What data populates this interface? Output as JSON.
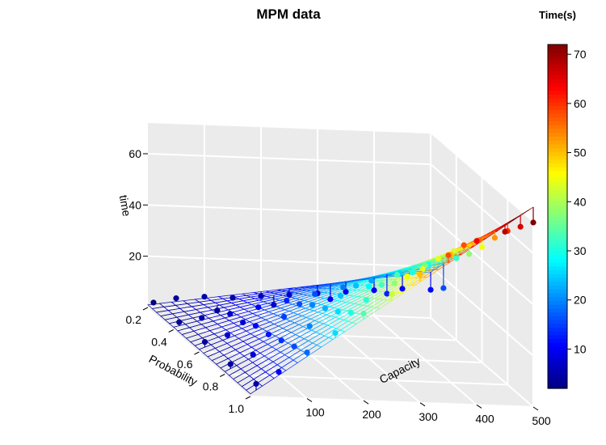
{
  "chart_data": {
    "type": "scatter",
    "title": "MPM  data",
    "xlabel": "Capacity",
    "ylabel": "Probability",
    "zlabel": "time",
    "xlim": [
      0,
      500
    ],
    "ylim": [
      0.2,
      1.0
    ],
    "zlim": [
      0,
      72
    ],
    "x_ticks": [
      100,
      200,
      300,
      400,
      500
    ],
    "y_ticks": [
      0.2,
      0.4,
      0.6,
      0.8,
      1.0
    ],
    "z_ticks": [
      20,
      40,
      60
    ],
    "x_tick_labels": [
      "100",
      "200",
      "300",
      "400",
      "500"
    ],
    "y_tick_labels": [
      "0.2",
      "0.4",
      "0.6",
      "0.8",
      "1.0"
    ],
    "z_tick_labels": [
      "20",
      "40",
      "60"
    ],
    "fitted_plane": {
      "intercept": 1.0,
      "coef_capacity": 0.004,
      "coef_capacity_x_probability": 0.15
    },
    "plane_color_range": [
      0,
      70
    ],
    "panel_color": "#ebebeb",
    "grid_color": "#ffffff",
    "grid": true,
    "points_color_by": "time",
    "series": [
      {
        "points": [
          [
            10,
            0.2,
            2
          ],
          [
            50,
            0.2,
            4
          ],
          [
            100,
            0.2,
            5
          ],
          [
            150,
            0.2,
            5
          ],
          [
            200,
            0.2,
            6
          ],
          [
            250,
            0.2,
            7
          ],
          [
            300,
            0.2,
            8
          ],
          [
            350,
            0.2,
            9
          ],
          [
            400,
            0.2,
            10
          ],
          [
            450,
            0.2,
            11
          ],
          [
            500,
            0.2,
            11
          ],
          [
            10,
            0.4,
            3
          ],
          [
            50,
            0.4,
            5
          ],
          [
            100,
            0.4,
            7
          ],
          [
            150,
            0.4,
            10
          ],
          [
            200,
            0.4,
            13
          ],
          [
            250,
            0.4,
            16
          ],
          [
            300,
            0.4,
            19
          ],
          [
            350,
            0.4,
            22
          ],
          [
            400,
            0.4,
            25
          ],
          [
            450,
            0.4,
            29
          ],
          [
            500,
            0.4,
            32
          ],
          [
            10,
            0.6,
            4
          ],
          [
            50,
            0.6,
            7
          ],
          [
            100,
            0.6,
            11
          ],
          [
            150,
            0.6,
            15
          ],
          [
            200,
            0.6,
            20
          ],
          [
            250,
            0.6,
            24
          ],
          [
            300,
            0.6,
            28
          ],
          [
            350,
            0.6,
            33
          ],
          [
            400,
            0.6,
            37
          ],
          [
            450,
            0.6,
            43
          ],
          [
            500,
            0.6,
            45
          ],
          [
            10,
            0.8,
            4
          ],
          [
            50,
            0.8,
            8
          ],
          [
            100,
            0.8,
            14
          ],
          [
            150,
            0.8,
            20
          ],
          [
            200,
            0.8,
            26
          ],
          [
            250,
            0.8,
            31
          ],
          [
            300,
            0.8,
            38
          ],
          [
            350,
            0.8,
            44
          ],
          [
            400,
            0.8,
            50
          ],
          [
            450,
            0.8,
            56
          ],
          [
            500,
            0.8,
            60
          ],
          [
            10,
            1.0,
            5
          ],
          [
            50,
            1.0,
            10
          ],
          [
            100,
            1.0,
            18
          ],
          [
            150,
            1.0,
            26
          ],
          [
            200,
            1.0,
            34
          ],
          [
            250,
            1.0,
            42
          ],
          [
            300,
            1.0,
            50
          ],
          [
            350,
            1.0,
            58
          ],
          [
            400,
            1.0,
            64
          ],
          [
            450,
            1.0,
            68
          ],
          [
            500,
            1.0,
            72
          ],
          [
            100,
            0.3,
            4
          ],
          [
            200,
            0.3,
            7
          ],
          [
            300,
            0.3,
            10
          ],
          [
            400,
            0.3,
            13
          ],
          [
            500,
            0.3,
            16
          ],
          [
            100,
            0.5,
            8
          ],
          [
            200,
            0.5,
            16
          ],
          [
            300,
            0.5,
            24
          ],
          [
            400,
            0.5,
            30
          ],
          [
            500,
            0.5,
            38
          ],
          [
            100,
            0.7,
            12
          ],
          [
            200,
            0.7,
            23
          ],
          [
            300,
            0.7,
            33
          ],
          [
            400,
            0.7,
            44
          ],
          [
            500,
            0.7,
            53
          ],
          [
            100,
            0.9,
            16
          ],
          [
            200,
            0.9,
            30
          ],
          [
            300,
            0.9,
            45
          ],
          [
            400,
            0.9,
            58
          ],
          [
            500,
            0.9,
            66
          ]
        ]
      }
    ],
    "colorbar": {
      "title": "Time(s)",
      "min": 2,
      "max": 72,
      "ticks": [
        10,
        20,
        30,
        40,
        50,
        60,
        70
      ],
      "tick_labels": [
        "10",
        "20",
        "30",
        "40",
        "50",
        "60",
        "70"
      ]
    },
    "colormap": [
      "#00007f",
      "#0000ff",
      "#007fff",
      "#00ffff",
      "#7fff7f",
      "#ffff00",
      "#ff7f00",
      "#ff0000",
      "#7f0000"
    ]
  }
}
